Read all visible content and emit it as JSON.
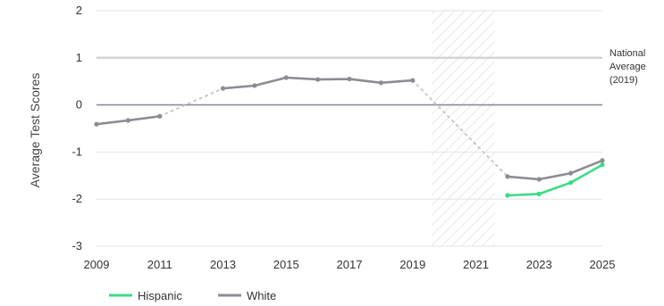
{
  "chart_data": {
    "type": "line",
    "ylabel": "Average Test Scores",
    "xlabel": "",
    "xlim": [
      2009,
      2025
    ],
    "ylim": [
      -3,
      2
    ],
    "x_ticks": [
      2009,
      2011,
      2013,
      2015,
      2017,
      2019,
      2021,
      2023,
      2025
    ],
    "y_ticks": [
      2,
      1,
      0,
      -1,
      -2,
      -3
    ],
    "reference_line": {
      "y": 1,
      "label": [
        "National",
        "Average",
        "(2019)"
      ]
    },
    "zero_line": 0,
    "shaded_range": {
      "x": [
        2019.6,
        2021.6
      ],
      "pattern": "diagonal-hatch"
    },
    "series": [
      {
        "name": "Hispanic",
        "color": "#3ddc84",
        "x": [
          2022,
          2023,
          2024,
          2025
        ],
        "y": [
          -1.92,
          -1.89,
          -1.65,
          -1.27
        ]
      },
      {
        "name": "White",
        "color": "#8a8d92",
        "segments": [
          {
            "x": [
              2009,
              2010,
              2011
            ],
            "y": [
              -0.41,
              -0.33,
              -0.24
            ]
          },
          {
            "x": [
              2013,
              2014,
              2015,
              2016,
              2017,
              2018,
              2019
            ],
            "y": [
              0.35,
              0.41,
              0.58,
              0.54,
              0.55,
              0.47,
              0.52
            ]
          },
          {
            "x": [
              2022,
              2023,
              2024,
              2025
            ],
            "y": [
              -1.52,
              -1.58,
              -1.45,
              -1.18
            ]
          }
        ],
        "gaps": [
          {
            "from": [
              2011,
              -0.24
            ],
            "to": [
              2013,
              0.35
            ]
          },
          {
            "from": [
              2019,
              0.52
            ],
            "to": [
              2022,
              -1.52
            ]
          }
        ]
      }
    ],
    "legend": {
      "position": "bottom-left"
    },
    "grid": true
  }
}
